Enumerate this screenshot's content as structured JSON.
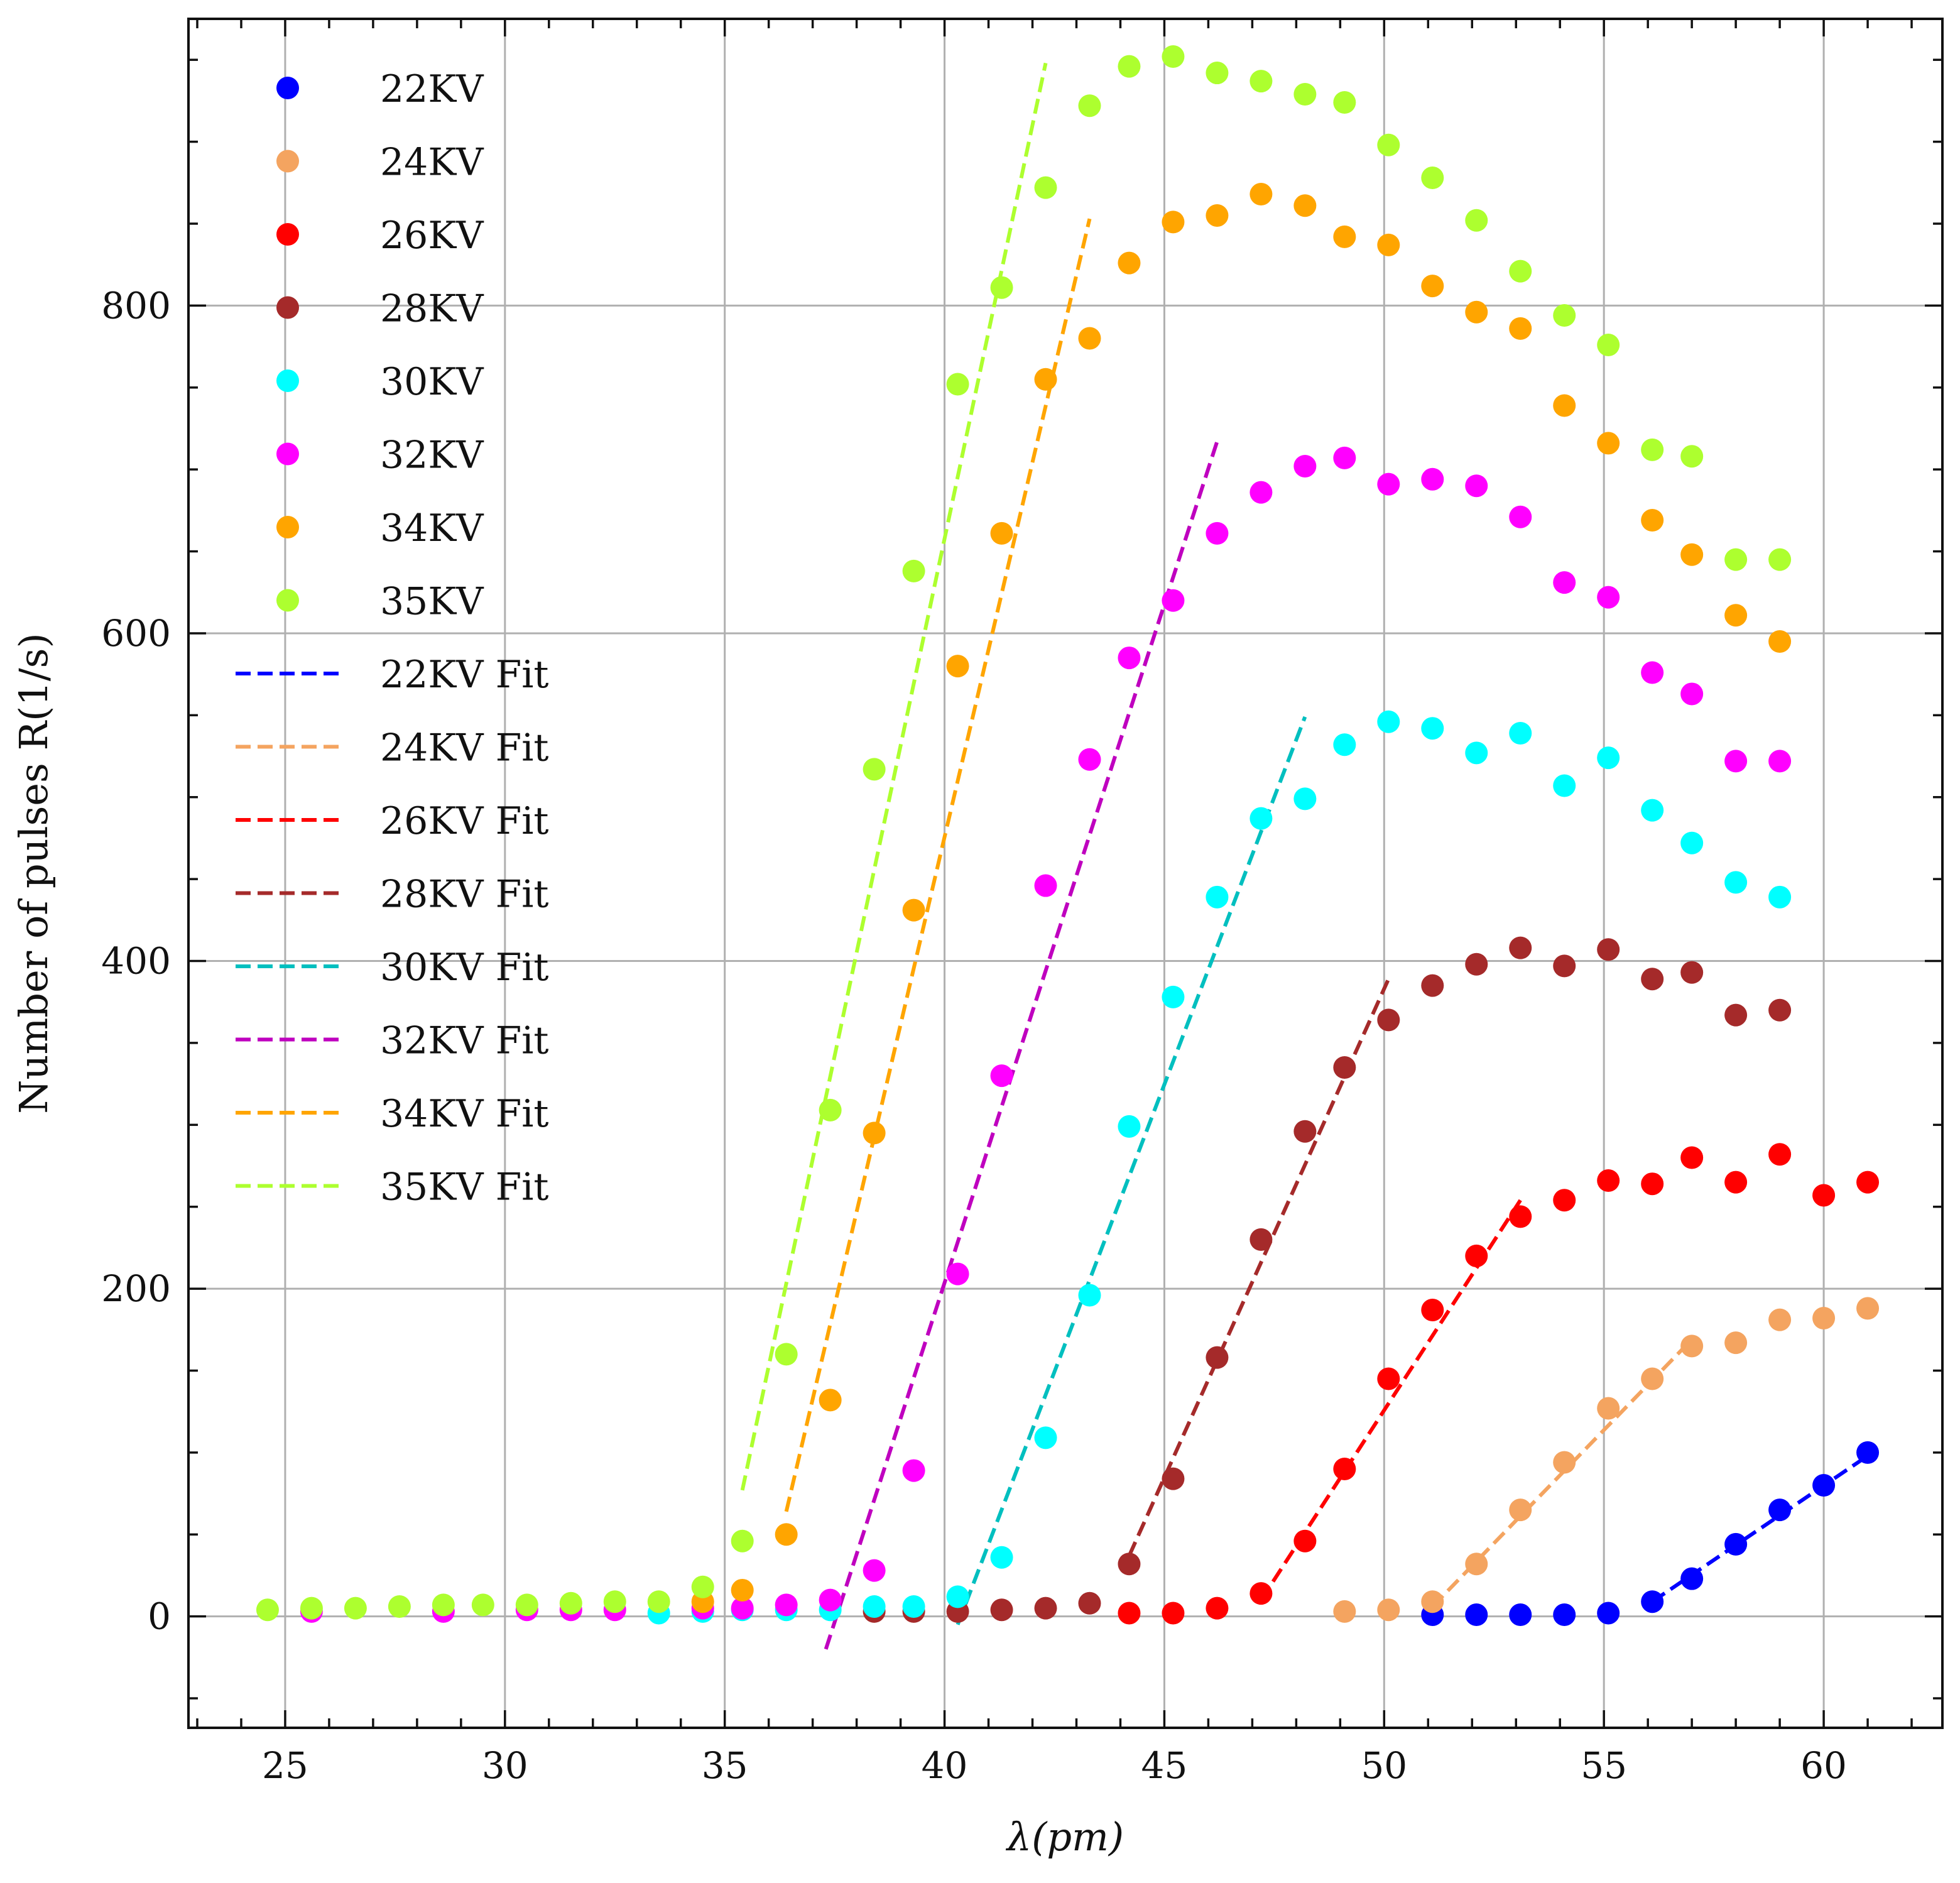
{
  "chart_data": {
    "type": "scatter",
    "xlabel": "λ(pm)",
    "ylabel": "Number of pulses R(1/s)",
    "xlim": [
      22.8,
      62.7
    ],
    "ylim": [
      -68,
      975
    ],
    "xticks": [
      25,
      30,
      35,
      40,
      45,
      50,
      55,
      60
    ],
    "yticks": [
      0,
      200,
      400,
      600,
      800
    ],
    "grid": true,
    "legend_position": "upper-left",
    "series": [
      {
        "name": "22KV",
        "color": "#0000ff",
        "x": [
          51.1,
          52.1,
          53.1,
          54.1,
          55.1,
          56.1,
          57.0,
          58.0,
          59.0,
          60.0,
          61.0
        ],
        "y": [
          1,
          1,
          1,
          1,
          2,
          9,
          23,
          44,
          65,
          80,
          100
        ]
      },
      {
        "name": "24KV",
        "color": "#f4a460",
        "x": [
          49.1,
          50.1,
          51.1,
          52.1,
          53.1,
          54.1,
          55.1,
          56.1,
          57.0,
          58.0,
          59.0,
          60.0,
          61.0
        ],
        "y": [
          3,
          4,
          9,
          32,
          65,
          94,
          127,
          145,
          165,
          167,
          181,
          182,
          188
        ]
      },
      {
        "name": "26KV",
        "color": "#ff0000",
        "x": [
          44.2,
          45.2,
          46.2,
          47.2,
          48.2,
          49.1,
          50.1,
          51.1,
          52.1,
          53.1,
          54.1,
          55.1,
          56.1,
          57.0,
          58.0,
          59.0,
          60.0,
          61.0
        ],
        "y": [
          2,
          2,
          5,
          14,
          46,
          90,
          145,
          187,
          220,
          244,
          254,
          266,
          264,
          280,
          265,
          282,
          257,
          265
        ]
      },
      {
        "name": "28KV",
        "color": "#a52a2a",
        "x": [
          38.4,
          39.3,
          40.3,
          41.3,
          42.3,
          43.3,
          44.2,
          45.2,
          46.2,
          47.2,
          48.2,
          49.1,
          50.1,
          51.1,
          52.1,
          53.1,
          54.1,
          55.1,
          56.1,
          57.0,
          58.0,
          59.0
        ],
        "y": [
          3,
          3,
          3,
          4,
          5,
          8,
          32,
          84,
          158,
          230,
          296,
          335,
          364,
          385,
          398,
          408,
          397,
          407,
          389,
          393,
          367,
          370
        ]
      },
      {
        "name": "30KV",
        "color": "#00ffff",
        "x": [
          33.5,
          34.5,
          35.4,
          36.4,
          37.4,
          38.4,
          39.3,
          40.3,
          41.3,
          42.3,
          43.3,
          44.2,
          45.2,
          46.2,
          47.2,
          48.2,
          49.1,
          50.1,
          51.1,
          52.1,
          53.1,
          54.1,
          55.1,
          56.1,
          57.0,
          58.0,
          59.0
        ],
        "y": [
          2,
          3,
          4,
          4,
          4,
          6,
          6,
          12,
          36,
          109,
          196,
          299,
          378,
          439,
          487,
          499,
          532,
          546,
          542,
          527,
          539,
          507,
          524,
          492,
          472,
          448,
          439
        ]
      },
      {
        "name": "32KV",
        "color": "#ff00ff",
        "x": [
          25.6,
          28.6,
          30.5,
          31.5,
          32.5,
          34.5,
          35.4,
          36.4,
          37.4,
          38.4,
          39.3,
          40.3,
          41.3,
          42.3,
          43.3,
          44.2,
          45.2,
          46.2,
          47.2,
          48.2,
          49.1,
          50.1,
          51.1,
          52.1,
          53.1,
          54.1,
          55.1,
          56.1,
          57.0,
          58.0,
          59.0
        ],
        "y": [
          3,
          3,
          4,
          4,
          4,
          5,
          5,
          7,
          10,
          28,
          89,
          209,
          330,
          446,
          523,
          585,
          620,
          661,
          686,
          702,
          707,
          691,
          694,
          690,
          671,
          631,
          622,
          576,
          563,
          522,
          522
        ]
      },
      {
        "name": "34KV",
        "color": "#ffa500",
        "x": [
          34.5,
          35.4,
          36.4,
          37.4,
          38.4,
          39.3,
          40.3,
          41.3,
          42.3,
          43.3,
          44.2,
          45.2,
          46.2,
          47.2,
          48.2,
          49.1,
          50.1,
          51.1,
          52.1,
          53.1,
          54.1,
          55.1,
          56.1,
          57.0,
          58.0,
          59.0
        ],
        "y": [
          9,
          16,
          50,
          132,
          295,
          431,
          580,
          661,
          755,
          780,
          826,
          851,
          855,
          868,
          861,
          842,
          837,
          812,
          796,
          786,
          739,
          716,
          669,
          648,
          611,
          595
        ]
      },
      {
        "name": "35KV",
        "color": "#adff2f",
        "x": [
          24.6,
          25.6,
          26.6,
          27.6,
          28.6,
          29.5,
          30.5,
          31.5,
          32.5,
          33.5,
          34.5,
          35.4,
          36.4,
          37.4,
          38.4,
          39.3,
          40.3,
          41.3,
          42.3,
          43.3,
          44.2,
          45.2,
          46.2,
          47.2,
          48.2,
          49.1,
          50.1,
          51.1,
          52.1,
          53.1,
          54.1,
          55.1,
          56.1,
          57.0,
          58.0,
          59.0
        ],
        "y": [
          4,
          5,
          5,
          6,
          7,
          7,
          7,
          8,
          9,
          9,
          18,
          46,
          160,
          309,
          517,
          638,
          752,
          811,
          872,
          922,
          946,
          952,
          942,
          937,
          929,
          924,
          898,
          878,
          852,
          821,
          794,
          776,
          712,
          708,
          645,
          645
        ]
      }
    ],
    "fits": [
      {
        "name": "22KV Fit",
        "color": "#0000ff",
        "x": [
          56.1,
          61.0
        ],
        "y": [
          9,
          98
        ]
      },
      {
        "name": "24KV Fit",
        "color": "#f4a460",
        "x": [
          51.1,
          57.0
        ],
        "y": [
          6,
          169
        ]
      },
      {
        "name": "26KV Fit",
        "color": "#ff0000",
        "x": [
          47.2,
          53.1
        ],
        "y": [
          10,
          254
        ]
      },
      {
        "name": "28KV Fit",
        "color": "#a52a2a",
        "x": [
          44.2,
          50.1
        ],
        "y": [
          37,
          389
        ]
      },
      {
        "name": "30KV Fit",
        "color": "#00bfbf",
        "x": [
          40.3,
          48.2
        ],
        "y": [
          -5,
          549
        ]
      },
      {
        "name": "32KV Fit",
        "color": "#bf00bf",
        "x": [
          37.3,
          46.2
        ],
        "y": [
          -20,
          717
        ]
      },
      {
        "name": "34KV Fit",
        "color": "#ffa500",
        "x": [
          36.4,
          43.3
        ],
        "y": [
          64,
          853
        ]
      },
      {
        "name": "35KV Fit",
        "color": "#adff2f",
        "x": [
          35.4,
          42.3
        ],
        "y": [
          77,
          948
        ]
      }
    ]
  }
}
